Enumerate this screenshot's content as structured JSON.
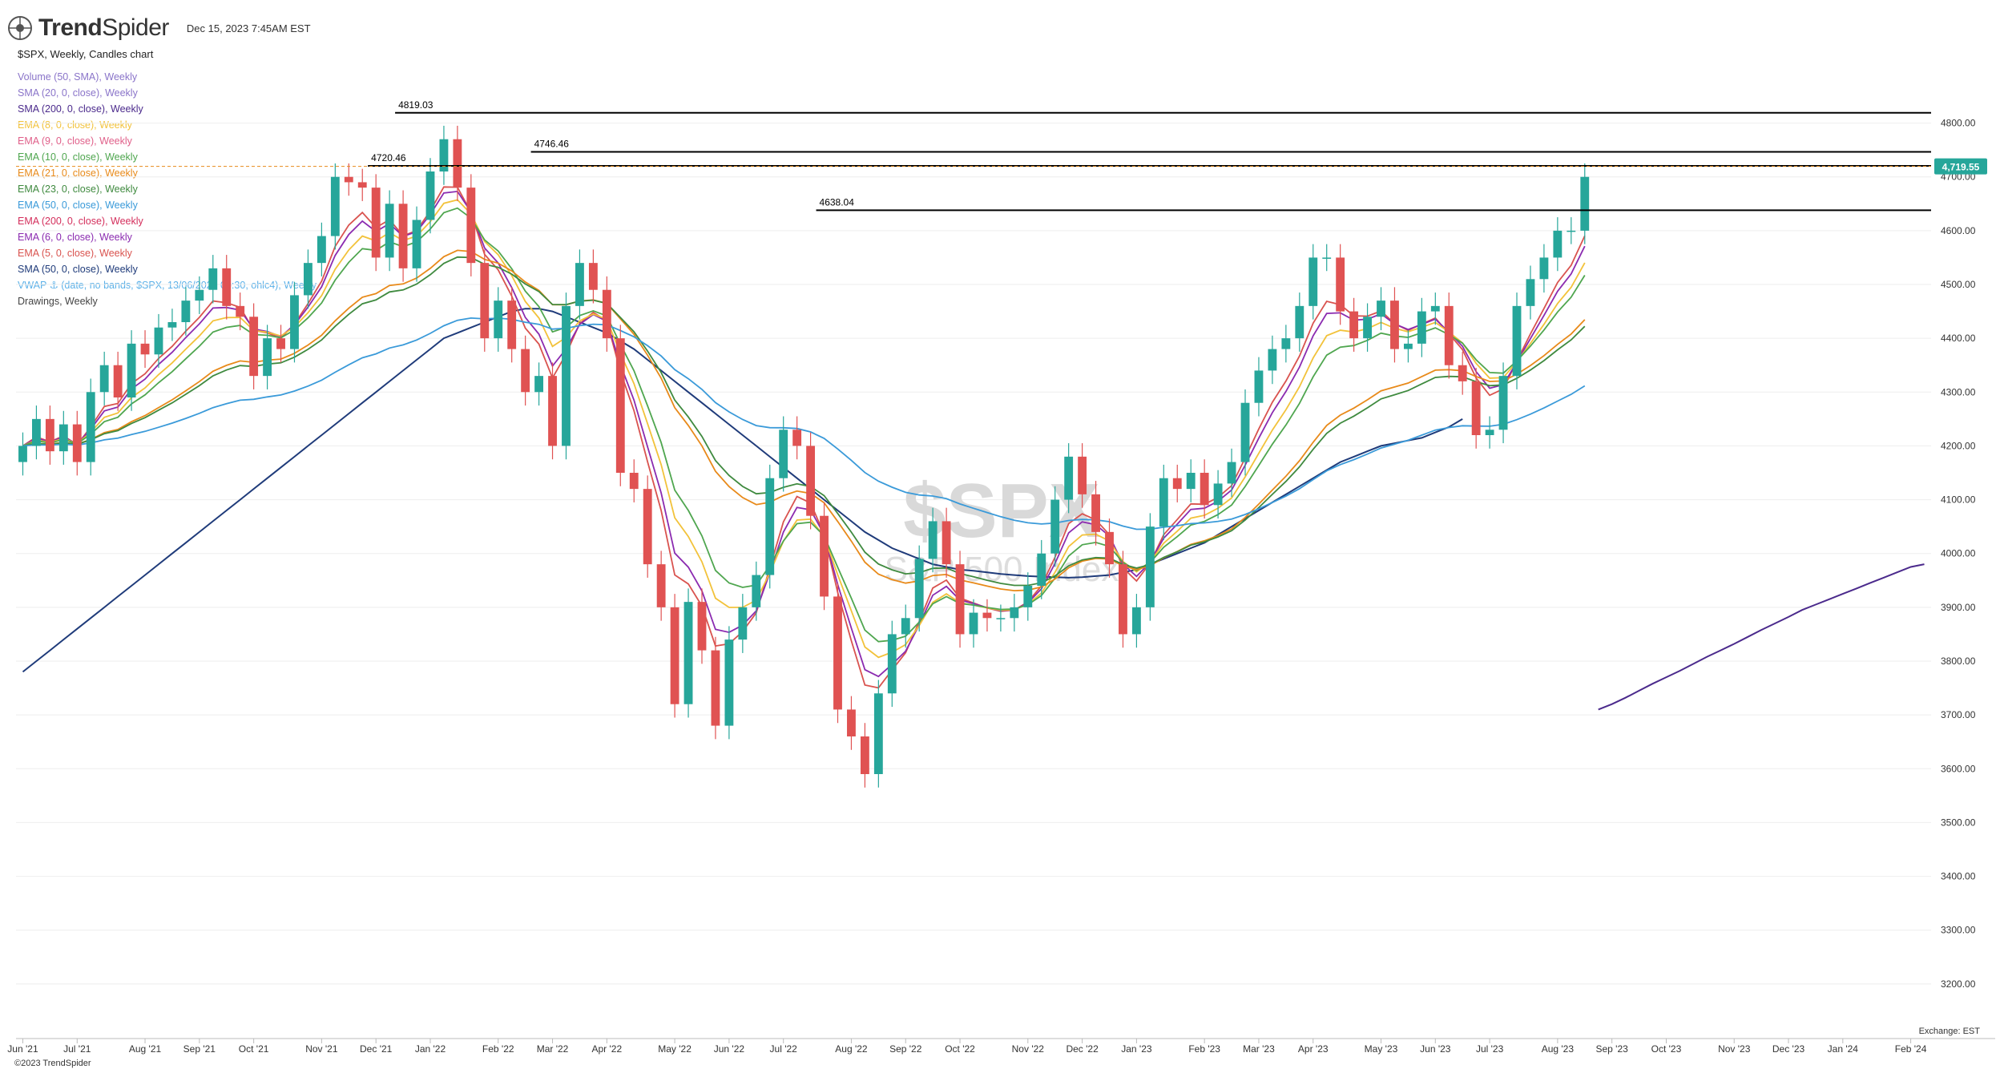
{
  "header": {
    "brand_bold": "Trend",
    "brand_light": "Spider",
    "datestamp": "Dec 15, 2023 7:45AM EST",
    "symbol_line": "$SPX, Weekly, Candles chart"
  },
  "legend": [
    {
      "label": "Volume (50, SMA), Weekly",
      "color": "#8a74c9"
    },
    {
      "label": "SMA (20, 0, close), Weekly",
      "color": "#8a74c9"
    },
    {
      "label": "SMA (200, 0, close), Weekly",
      "color": "#4b2a8c"
    },
    {
      "label": "EMA (8, 0, close), Weekly",
      "color": "#f2c23a"
    },
    {
      "label": "EMA (9, 0, close), Weekly",
      "color": "#e0608a"
    },
    {
      "label": "EMA (10, 0, close), Weekly",
      "color": "#4fa64f"
    },
    {
      "label": "EMA (21, 0, close), Weekly",
      "color": "#e88a1a"
    },
    {
      "label": "EMA (23, 0, close), Weekly",
      "color": "#3f8a3f"
    },
    {
      "label": "EMA (50, 0, close), Weekly",
      "color": "#3a9ad9"
    },
    {
      "label": "EMA (200, 0, close), Weekly",
      "color": "#d42f5c"
    },
    {
      "label": "EMA (6, 0, close), Weekly",
      "color": "#8b2bb0"
    },
    {
      "label": "EMA (5, 0, close), Weekly",
      "color": "#d9534f"
    },
    {
      "label": "SMA (50, 0, close), Weekly",
      "color": "#1f3b7a"
    },
    {
      "label": "VWAP ⚓ (date, no bands, $SPX, 13/06/2022 09:30, ohlc4), Weekly",
      "color": "#5ab0e8"
    },
    {
      "label": "Drawings, Weekly",
      "color": "#444444"
    }
  ],
  "watermark": {
    "symbol": "$SPX",
    "name": "S&P 500 Index"
  },
  "footer": {
    "copyright": "©2023 TrendSpider",
    "exchange": "Exchange: EST"
  },
  "colors": {
    "up": "#26a69a",
    "down": "#e05252",
    "grid": "#eeeeee",
    "price_tag": "#26a69a"
  },
  "chart_data": {
    "type": "candlestick",
    "ylim": [
      3100,
      4850
    ],
    "y_ticks": [
      3200,
      3300,
      3400,
      3500,
      3600,
      3700,
      3800,
      3900,
      4000,
      4100,
      4200,
      4300,
      4400,
      4500,
      4600,
      4700,
      4800
    ],
    "y_tick_labels": [
      "3200.00",
      "3300.00",
      "3400.00",
      "3500.00",
      "3600.00",
      "3700.00",
      "3800.00",
      "3900.00",
      "4000.00",
      "4100.00",
      "4200.00",
      "4300.00",
      "4400.00",
      "4500.00",
      "4600.00",
      "4700.00",
      "4800.00"
    ],
    "x_labels": [
      "Jun '21",
      "Jul '21",
      "Aug '21",
      "Sep '21",
      "Oct '21",
      "Nov '21",
      "Dec '21",
      "Jan '22",
      "Feb '22",
      "Mar '22",
      "Apr '22",
      "May '22",
      "Jun '22",
      "Jul '22",
      "Aug '22",
      "Sep '22",
      "Oct '22",
      "Nov '22",
      "Dec '22",
      "Jan '23",
      "Feb '23",
      "Mar '23",
      "Apr '23",
      "May '23",
      "Jun '23",
      "Jul '23",
      "Aug '23",
      "Sep '23",
      "Oct '23",
      "Nov '23",
      "Dec '23",
      "Jan '24",
      "Feb '24"
    ],
    "x_label_week": [
      0,
      4,
      9,
      13,
      17,
      22,
      26,
      30,
      35,
      39,
      43,
      48,
      52,
      56,
      61,
      65,
      69,
      74,
      78,
      82,
      87,
      91,
      95,
      100,
      104,
      108,
      113,
      117,
      121,
      126,
      130,
      134,
      139
    ],
    "closes": [
      4200,
      4250,
      4190,
      4240,
      4170,
      4300,
      4350,
      4290,
      4390,
      4370,
      4420,
      4430,
      4470,
      4490,
      4530,
      4460,
      4440,
      4330,
      4400,
      4380,
      4480,
      4540,
      4590,
      4700,
      4690,
      4680,
      4550,
      4650,
      4530,
      4620,
      4710,
      4770,
      4680,
      4540,
      4400,
      4470,
      4380,
      4300,
      4330,
      4200,
      4460,
      4540,
      4490,
      4400,
      4150,
      4120,
      3980,
      3900,
      3720,
      3910,
      3820,
      3680,
      3840,
      3900,
      3960,
      4140,
      4230,
      4200,
      4070,
      3920,
      3710,
      3660,
      3590,
      3740,
      3850,
      3880,
      3990,
      4060,
      3980,
      3850,
      3890,
      3880,
      3880,
      3900,
      3940,
      4000,
      4100,
      4180,
      4110,
      4040,
      3980,
      3850,
      3900,
      4050,
      4140,
      4120,
      4150,
      4090,
      4130,
      4170,
      4280,
      4340,
      4380,
      4400,
      4460,
      4550,
      4550,
      4450,
      4400,
      4440,
      4470,
      4380,
      4390,
      4450,
      4460,
      4350,
      4320,
      4220,
      4230,
      4330,
      4460,
      4510,
      4550,
      4600,
      4600,
      4700
    ],
    "sma50": [
      3780,
      3800,
      3820,
      3840,
      3860,
      3880,
      3900,
      3920,
      3940,
      3960,
      3980,
      4000,
      4020,
      4040,
      4060,
      4080,
      4100,
      4120,
      4140,
      4160,
      4180,
      4200,
      4220,
      4240,
      4260,
      4280,
      4300,
      4320,
      4340,
      4360,
      4380,
      4400,
      4410,
      4420,
      4430,
      4440,
      4450,
      4455,
      4455,
      4450,
      4440,
      4430,
      4420,
      4410,
      4395,
      4380,
      4360,
      4340,
      4320,
      4300,
      4280,
      4260,
      4240,
      4220,
      4200,
      4180,
      4160,
      4140,
      4120,
      4100,
      4080,
      4060,
      4040,
      4025,
      4010,
      4000,
      3990,
      3980,
      3975,
      3970,
      3968,
      3965,
      3962,
      3960,
      3958,
      3957,
      3956,
      3955,
      3956,
      3958,
      3960,
      3965,
      3970,
      3980,
      3990,
      4000,
      4010,
      4020,
      4035,
      4050,
      4065,
      4080,
      4095,
      4110,
      4125,
      4140,
      4155,
      4170,
      4180,
      4190,
      4200,
      4205,
      4210,
      4215,
      4225,
      4235,
      4250
    ],
    "sma200": [
      3710,
      3720,
      3732,
      3745,
      3758,
      3770,
      3782,
      3795,
      3808,
      3820,
      3832,
      3845,
      3858,
      3870,
      3882,
      3895,
      3905,
      3915,
      3925,
      3935,
      3945,
      3955,
      3965,
      3975,
      3980
    ],
    "price_levels": [
      {
        "label": "4819.03",
        "value": 4819.03,
        "start_week": 28
      },
      {
        "label": "4746.46",
        "value": 4746.46,
        "start_week": 38
      },
      {
        "label": "4720.46",
        "value": 4720.46,
        "start_week": 26
      },
      {
        "label": "4638.04",
        "value": 4638.04,
        "start_week": 59
      }
    ],
    "last_price": {
      "value": 4719.55,
      "label": "4,719.55"
    }
  }
}
